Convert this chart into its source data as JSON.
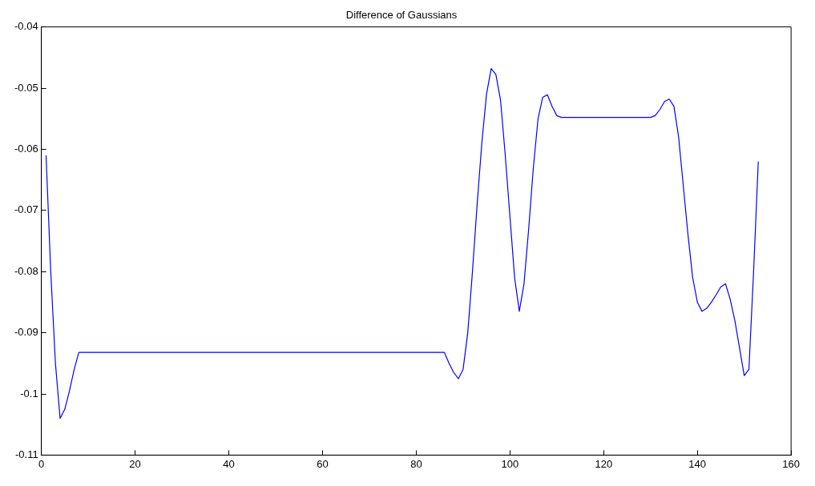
{
  "chart_data": {
    "type": "line",
    "title": "Difference of Gaussians",
    "x": [
      1,
      2,
      3,
      4,
      5,
      6,
      7,
      8,
      86,
      87,
      88,
      89,
      90,
      91,
      92,
      93,
      94,
      95,
      96,
      97,
      98,
      99,
      100,
      101,
      102,
      103,
      104,
      105,
      106,
      107,
      108,
      109,
      110,
      111,
      130,
      131,
      132,
      133,
      134,
      135,
      136,
      137,
      138,
      139,
      140,
      141,
      142,
      143,
      144,
      145,
      146,
      147,
      148,
      149,
      150,
      151,
      152,
      153
    ],
    "series": [
      {
        "color": "#0000ff",
        "values": [
          -0.061,
          -0.08,
          -0.095,
          -0.104,
          -0.1025,
          -0.0995,
          -0.096,
          -0.0932,
          -0.0932,
          -0.095,
          -0.0965,
          -0.0975,
          -0.096,
          -0.09,
          -0.08,
          -0.069,
          -0.059,
          -0.051,
          -0.0468,
          -0.0478,
          -0.052,
          -0.061,
          -0.071,
          -0.081,
          -0.0865,
          -0.082,
          -0.073,
          -0.063,
          -0.055,
          -0.0515,
          -0.0511,
          -0.053,
          -0.0545,
          -0.0548,
          -0.0548,
          -0.0545,
          -0.0535,
          -0.0522,
          -0.0518,
          -0.053,
          -0.058,
          -0.066,
          -0.074,
          -0.081,
          -0.085,
          -0.0865,
          -0.086,
          -0.085,
          -0.0838,
          -0.0825,
          -0.082,
          -0.0845,
          -0.088,
          -0.0925,
          -0.097,
          -0.096,
          -0.08,
          -0.062
        ]
      }
    ],
    "xlim": [
      0,
      160
    ],
    "xticks": [
      0,
      20,
      40,
      60,
      80,
      100,
      120,
      140,
      160
    ],
    "ylim": [
      -0.11,
      -0.04
    ],
    "yticks": [
      -0.11,
      -0.1,
      -0.09,
      -0.08,
      -0.07,
      -0.06,
      -0.05,
      -0.04
    ],
    "grid": false,
    "legend": false,
    "marker": "none",
    "line_style": "solid"
  }
}
